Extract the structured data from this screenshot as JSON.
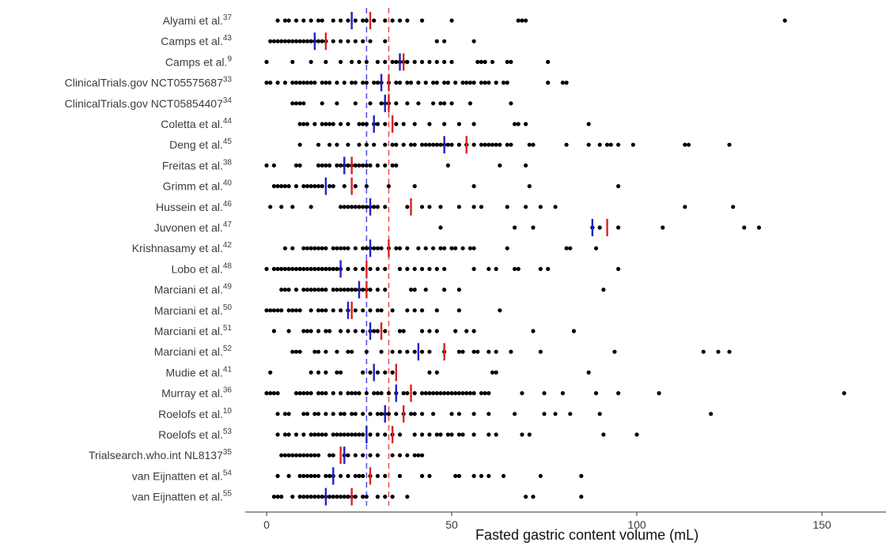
{
  "chart_data": {
    "type": "scatter",
    "xlabel": "Fasted gastric content volume (mL)",
    "xlim": [
      -10,
      168
    ],
    "xticks": [
      0,
      50,
      100,
      150
    ],
    "grid": false,
    "colors": {
      "points": "#000000",
      "mean": "#2020c8",
      "median": "#dd2020",
      "pooled_mean": "#5555ee",
      "pooled_median": "#ee5555"
    },
    "pooled": {
      "mean": 27,
      "median": 33
    },
    "studies": [
      {
        "name": "Alyami et al.",
        "ref": "37",
        "mean": 23,
        "median": 28,
        "points": [
          3,
          5,
          6,
          8,
          10,
          12,
          14,
          15,
          18,
          20,
          22,
          24,
          26,
          27,
          29,
          32,
          34,
          36,
          38,
          42,
          50,
          68,
          69,
          70,
          140
        ]
      },
      {
        "name": "Camps et al.",
        "ref": "43",
        "mean": 13,
        "median": 16,
        "points": [
          1,
          2,
          3,
          4,
          5,
          6,
          7,
          8,
          9,
          10,
          11,
          12,
          13,
          14,
          15,
          16,
          18,
          20,
          22,
          24,
          26,
          28,
          32,
          46,
          48,
          56
        ]
      },
      {
        "name": "Camps et al.",
        "ref": "9",
        "mean": 36,
        "median": 37,
        "points": [
          0,
          7,
          12,
          16,
          20,
          23,
          25,
          27,
          30,
          32,
          34,
          35,
          36,
          37,
          38,
          40,
          42,
          44,
          46,
          48,
          50,
          57,
          58,
          59,
          61,
          65,
          66,
          76
        ]
      },
      {
        "name": "ClinicalTrials.gov NCT05575687",
        "ref": "33",
        "mean": 31,
        "median": 33,
        "points": [
          0,
          1,
          3,
          5,
          7,
          8,
          9,
          10,
          11,
          12,
          13,
          15,
          16,
          17,
          19,
          21,
          23,
          24,
          26,
          27,
          29,
          30,
          31,
          33,
          35,
          36,
          38,
          39,
          41,
          43,
          45,
          46,
          48,
          49,
          51,
          53,
          54,
          55,
          56,
          58,
          59,
          60,
          62,
          64,
          65,
          76,
          80,
          81
        ]
      },
      {
        "name": "ClinicalTrials.gov NCT05854407",
        "ref": "34",
        "mean": 32,
        "median": 33,
        "points": [
          7,
          8,
          9,
          10,
          15,
          19,
          24,
          28,
          31,
          32,
          33,
          35,
          38,
          41,
          45,
          47,
          48,
          50,
          55,
          66
        ]
      },
      {
        "name": "Coletta et al.",
        "ref": "44",
        "mean": 29,
        "median": 34,
        "points": [
          9,
          10,
          11,
          13,
          15,
          16,
          17,
          18,
          20,
          22,
          25,
          26,
          27,
          29,
          30,
          32,
          35,
          37,
          40,
          44,
          48,
          52,
          56,
          67,
          68,
          70,
          87
        ]
      },
      {
        "name": "Deng et al.",
        "ref": "45",
        "mean": 48,
        "median": 54,
        "points": [
          9,
          14,
          17,
          19,
          22,
          25,
          27,
          29,
          32,
          34,
          35,
          37,
          39,
          40,
          42,
          43,
          44,
          45,
          46,
          47,
          48,
          49,
          50,
          52,
          54,
          56,
          58,
          59,
          60,
          61,
          62,
          63,
          65,
          66,
          71,
          72,
          81,
          87,
          90,
          92,
          93,
          95,
          99,
          113,
          114,
          125
        ]
      },
      {
        "name": "Freitas et al.",
        "ref": "38",
        "mean": 21,
        "median": 23,
        "points": [
          0,
          2,
          8,
          9,
          14,
          15,
          16,
          17,
          19,
          20,
          21,
          22,
          23,
          24,
          25,
          26,
          27,
          28,
          30,
          32,
          34,
          35,
          49,
          63,
          70
        ]
      },
      {
        "name": "Grimm et al.",
        "ref": "40",
        "mean": 16,
        "median": 23,
        "points": [
          2,
          3,
          4,
          5,
          6,
          8,
          10,
          11,
          12,
          13,
          14,
          15,
          17,
          18,
          21,
          24,
          27,
          33,
          40,
          56,
          71,
          95
        ]
      },
      {
        "name": "Hussein et al.",
        "ref": "46",
        "mean": 28,
        "median": 39,
        "points": [
          1,
          4,
          7,
          12,
          20,
          21,
          22,
          23,
          24,
          25,
          26,
          27,
          28,
          29,
          30,
          32,
          38,
          42,
          44,
          47,
          52,
          56,
          58,
          65,
          70,
          74,
          78,
          113,
          126
        ]
      },
      {
        "name": "Juvonen et al.",
        "ref": "47",
        "mean": 88,
        "median": 92,
        "points": [
          47,
          67,
          72,
          88,
          90,
          95,
          107,
          129,
          133
        ]
      },
      {
        "name": "Krishnasamy et al.",
        "ref": "42",
        "mean": 28,
        "median": 33,
        "points": [
          5,
          7,
          10,
          11,
          12,
          13,
          14,
          15,
          16,
          18,
          19,
          20,
          21,
          22,
          24,
          26,
          27,
          28,
          29,
          30,
          31,
          33,
          35,
          36,
          38,
          41,
          43,
          45,
          47,
          48,
          50,
          51,
          53,
          55,
          56,
          65,
          81,
          82,
          89
        ]
      },
      {
        "name": "Lobo et al.",
        "ref": "48",
        "mean": 20,
        "median": 27,
        "points": [
          0,
          2,
          3,
          4,
          5,
          6,
          7,
          8,
          9,
          10,
          11,
          12,
          13,
          14,
          15,
          16,
          17,
          18,
          19,
          20,
          22,
          24,
          26,
          28,
          30,
          32,
          36,
          38,
          40,
          42,
          44,
          46,
          48,
          56,
          60,
          62,
          67,
          68,
          74,
          76,
          95
        ]
      },
      {
        "name": "Marciani et al.",
        "ref": "49",
        "mean": 25,
        "median": 27,
        "points": [
          4,
          5,
          6,
          8,
          10,
          11,
          12,
          13,
          14,
          15,
          16,
          18,
          19,
          20,
          21,
          22,
          23,
          24,
          25,
          26,
          27,
          28,
          30,
          32,
          39,
          40,
          43,
          48,
          52,
          91
        ]
      },
      {
        "name": "Marciani et al.",
        "ref": "50",
        "mean": 22,
        "median": 23,
        "points": [
          0,
          1,
          2,
          3,
          4,
          6,
          7,
          8,
          9,
          12,
          14,
          15,
          16,
          18,
          20,
          22,
          24,
          26,
          28,
          30,
          31,
          34,
          38,
          40,
          42,
          46,
          52,
          63
        ]
      },
      {
        "name": "Marciani et al.",
        "ref": "51",
        "mean": 28,
        "median": 31,
        "points": [
          2,
          6,
          10,
          11,
          12,
          14,
          16,
          17,
          20,
          22,
          24,
          26,
          28,
          29,
          30,
          32,
          36,
          37,
          42,
          44,
          46,
          51,
          54,
          56,
          72,
          83
        ]
      },
      {
        "name": "Marciani et al.",
        "ref": "52",
        "mean": 41,
        "median": 48,
        "points": [
          7,
          8,
          9,
          13,
          14,
          16,
          19,
          22,
          23,
          27,
          31,
          34,
          36,
          38,
          40,
          42,
          44,
          48,
          52,
          53,
          56,
          57,
          60,
          62,
          66,
          74,
          94,
          118,
          122,
          125
        ]
      },
      {
        "name": "Mudie et al.",
        "ref": "41",
        "mean": 29,
        "median": 35,
        "points": [
          1,
          12,
          14,
          16,
          19,
          20,
          26,
          28,
          30,
          32,
          34,
          44,
          46,
          61,
          62,
          87
        ]
      },
      {
        "name": "Murray et al.",
        "ref": "36",
        "mean": 35,
        "median": 39,
        "points": [
          0,
          1,
          2,
          3,
          8,
          9,
          10,
          11,
          12,
          14,
          15,
          16,
          18,
          20,
          22,
          23,
          24,
          25,
          27,
          29,
          30,
          31,
          33,
          35,
          37,
          38,
          40,
          42,
          43,
          44,
          45,
          46,
          47,
          48,
          49,
          50,
          51,
          52,
          53,
          54,
          55,
          56,
          58,
          59,
          60,
          69,
          75,
          80,
          89,
          95,
          106,
          156
        ]
      },
      {
        "name": "Roelofs et al.",
        "ref": "10",
        "mean": 32,
        "median": 37,
        "points": [
          3,
          5,
          6,
          10,
          11,
          13,
          14,
          16,
          18,
          20,
          21,
          23,
          24,
          26,
          28,
          30,
          31,
          32,
          33,
          35,
          37,
          39,
          40,
          42,
          45,
          50,
          52,
          56,
          60,
          67,
          75,
          78,
          82,
          90,
          120
        ]
      },
      {
        "name": "Roelofs et al.",
        "ref": "53",
        "mean": 27,
        "median": 34,
        "points": [
          3,
          5,
          6,
          8,
          10,
          12,
          13,
          14,
          15,
          16,
          18,
          19,
          20,
          21,
          22,
          23,
          24,
          25,
          26,
          28,
          30,
          32,
          34,
          36,
          40,
          42,
          44,
          46,
          47,
          49,
          50,
          52,
          53,
          56,
          60,
          62,
          69,
          71,
          91,
          100
        ]
      },
      {
        "name": "Trialsearch.who.int NL8137",
        "ref": "35",
        "mean": 21,
        "median": 20,
        "points": [
          4,
          5,
          6,
          7,
          8,
          9,
          10,
          11,
          12,
          13,
          14,
          17,
          18,
          21,
          22,
          24,
          26,
          28,
          30,
          34,
          36,
          38,
          40,
          41,
          42
        ]
      },
      {
        "name": "van Eijnatten et al.",
        "ref": "54",
        "mean": 18,
        "median": 28,
        "points": [
          3,
          6,
          9,
          10,
          11,
          12,
          13,
          14,
          16,
          17,
          18,
          20,
          22,
          24,
          25,
          26,
          28,
          30,
          32,
          36,
          42,
          44,
          51,
          52,
          56,
          58,
          60,
          64,
          74,
          85
        ]
      },
      {
        "name": "van Eijnatten et al.",
        "ref": "55",
        "mean": 16,
        "median": 23,
        "points": [
          2,
          3,
          4,
          7,
          9,
          10,
          11,
          12,
          13,
          14,
          15,
          16,
          17,
          18,
          19,
          20,
          21,
          22,
          23,
          24,
          26,
          27,
          30,
          32,
          34,
          38,
          70,
          72,
          85
        ]
      }
    ]
  }
}
